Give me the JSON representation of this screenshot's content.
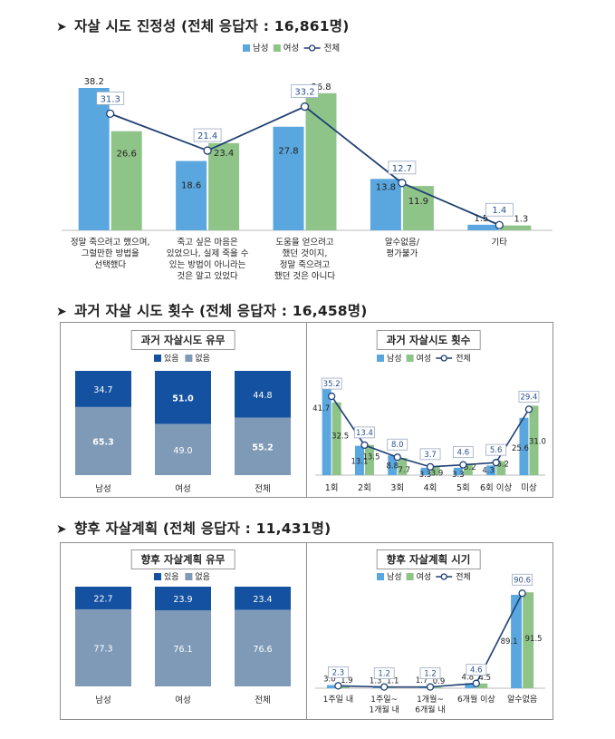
{
  "sections": [
    {
      "title": "자살 시도 진정성 (전체 응답자 : 16,861명)"
    },
    {
      "title": "과거 자살 시도 횟수 (전체 응답자 : 16,458명)"
    },
    {
      "title": "향후 자살계획 (전체 응답자 : 11,431명)"
    }
  ],
  "legend_labels": {
    "male": "남성",
    "female": "여성",
    "total": "전체",
    "yes": "있음",
    "no": "없음"
  },
  "colors": {
    "male": "#5aa7df",
    "female": "#8fc488",
    "line": "#1f3f73",
    "yes": "#1451a0",
    "no": "#7f9ab7"
  },
  "chart_data": [
    {
      "id": "sincerity",
      "type": "bar",
      "categories": [
        "정말 죽으려고 했으며,\n그럴만한 방법을\n선택했다",
        "죽고 싶은 마음은\n있었으나, 실제 죽을 수\n있는 방법이 아니라는\n것은 알고 있었다",
        "도움을 얻으려고\n했던 것이지,\n정말 죽으려고\n했던 것은 아니다",
        "알수없음/\n평가불가",
        "기타"
      ],
      "series": [
        {
          "name": "남성",
          "type": "bar",
          "values": [
            38.2,
            18.6,
            27.8,
            13.8,
            1.5
          ]
        },
        {
          "name": "여성",
          "type": "bar",
          "values": [
            26.6,
            23.4,
            36.8,
            11.9,
            1.3
          ]
        },
        {
          "name": "전체",
          "type": "line",
          "values": [
            31.3,
            21.4,
            33.2,
            12.7,
            1.4
          ]
        }
      ],
      "ylim": [
        0,
        42
      ]
    },
    {
      "id": "past-attempt-yn",
      "type": "bar",
      "stacked": true,
      "title": "과거 자살시도 유무",
      "categories": [
        "남성",
        "여성",
        "전체"
      ],
      "series": [
        {
          "name": "있음",
          "values": [
            34.7,
            51.0,
            44.8
          ]
        },
        {
          "name": "없음",
          "values": [
            65.3,
            49.0,
            55.2
          ]
        }
      ],
      "ylim": [
        0,
        100
      ]
    },
    {
      "id": "past-attempt-count",
      "type": "bar",
      "title": "과거 자살시도 횟수",
      "categories": [
        "1회",
        "2회",
        "3회",
        "4회",
        "5회",
        "6회 이상",
        "미상"
      ],
      "series": [
        {
          "name": "남성",
          "type": "bar",
          "values": [
            41.7,
            13.1,
            8.8,
            3.3,
            3.3,
            4.3,
            25.6
          ]
        },
        {
          "name": "여성",
          "type": "bar",
          "values": [
            32.5,
            13.5,
            7.7,
            3.9,
            5.2,
            6.2,
            31.0
          ]
        },
        {
          "name": "전체",
          "type": "line",
          "values": [
            35.2,
            13.4,
            8.0,
            3.7,
            4.6,
            5.6,
            29.4
          ]
        }
      ],
      "ylim": [
        0,
        44
      ]
    },
    {
      "id": "future-plan-yn",
      "type": "bar",
      "stacked": true,
      "title": "향후 자살계획 유무",
      "categories": [
        "남성",
        "여성",
        "전체"
      ],
      "series": [
        {
          "name": "있음",
          "values": [
            22.7,
            23.9,
            23.4
          ]
        },
        {
          "name": "없음",
          "values": [
            77.3,
            76.1,
            76.6
          ]
        }
      ],
      "ylim": [
        0,
        100
      ]
    },
    {
      "id": "future-plan-time",
      "type": "bar",
      "title": "향후 자살계획 시기",
      "categories": [
        "1주일 내",
        "1주일~\n1개월 내",
        "1개월~\n6개월 내",
        "6개월 이상",
        "알수없음"
      ],
      "series": [
        {
          "name": "남성",
          "type": "bar",
          "values": [
            3.0,
            1.3,
            1.7,
            4.8,
            89.1
          ]
        },
        {
          "name": "여성",
          "type": "bar",
          "values": [
            1.9,
            1.1,
            0.9,
            4.5,
            91.5
          ]
        },
        {
          "name": "전체",
          "type": "line",
          "values": [
            2.3,
            1.2,
            1.2,
            4.6,
            90.6
          ]
        }
      ],
      "ylim": [
        0,
        95
      ]
    }
  ]
}
